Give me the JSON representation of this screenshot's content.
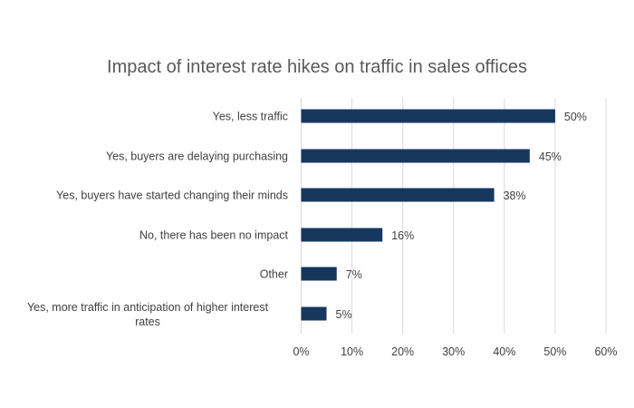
{
  "chart_data": {
    "type": "bar",
    "orientation": "horizontal",
    "title": "Impact of interest rate hikes on traffic in sales offices",
    "categories": [
      [
        "Yes, less traffic"
      ],
      [
        "Yes, buyers are delaying purchasing"
      ],
      [
        "Yes, buyers have started changing their minds"
      ],
      [
        "No, there has been no impact"
      ],
      [
        "Other"
      ],
      [
        "Yes, more traffic in anticipation of higher interest",
        "rates"
      ]
    ],
    "values": [
      50,
      45,
      38,
      16,
      7,
      5
    ],
    "data_labels": [
      "50%",
      "45%",
      "38%",
      "16%",
      "7%",
      "5%"
    ],
    "xlim": [
      0,
      60
    ],
    "xticks": [
      0,
      10,
      20,
      30,
      40,
      50,
      60
    ],
    "xtick_labels": [
      "0%",
      "10%",
      "20%",
      "30%",
      "40%",
      "50%",
      "60%"
    ],
    "xlabel": "",
    "ylabel": "",
    "grid": "vertical",
    "legend": "none",
    "colors": {
      "bar": "#17375e",
      "grid": "#d9d9d9",
      "text": "#404040",
      "title": "#595959"
    }
  }
}
